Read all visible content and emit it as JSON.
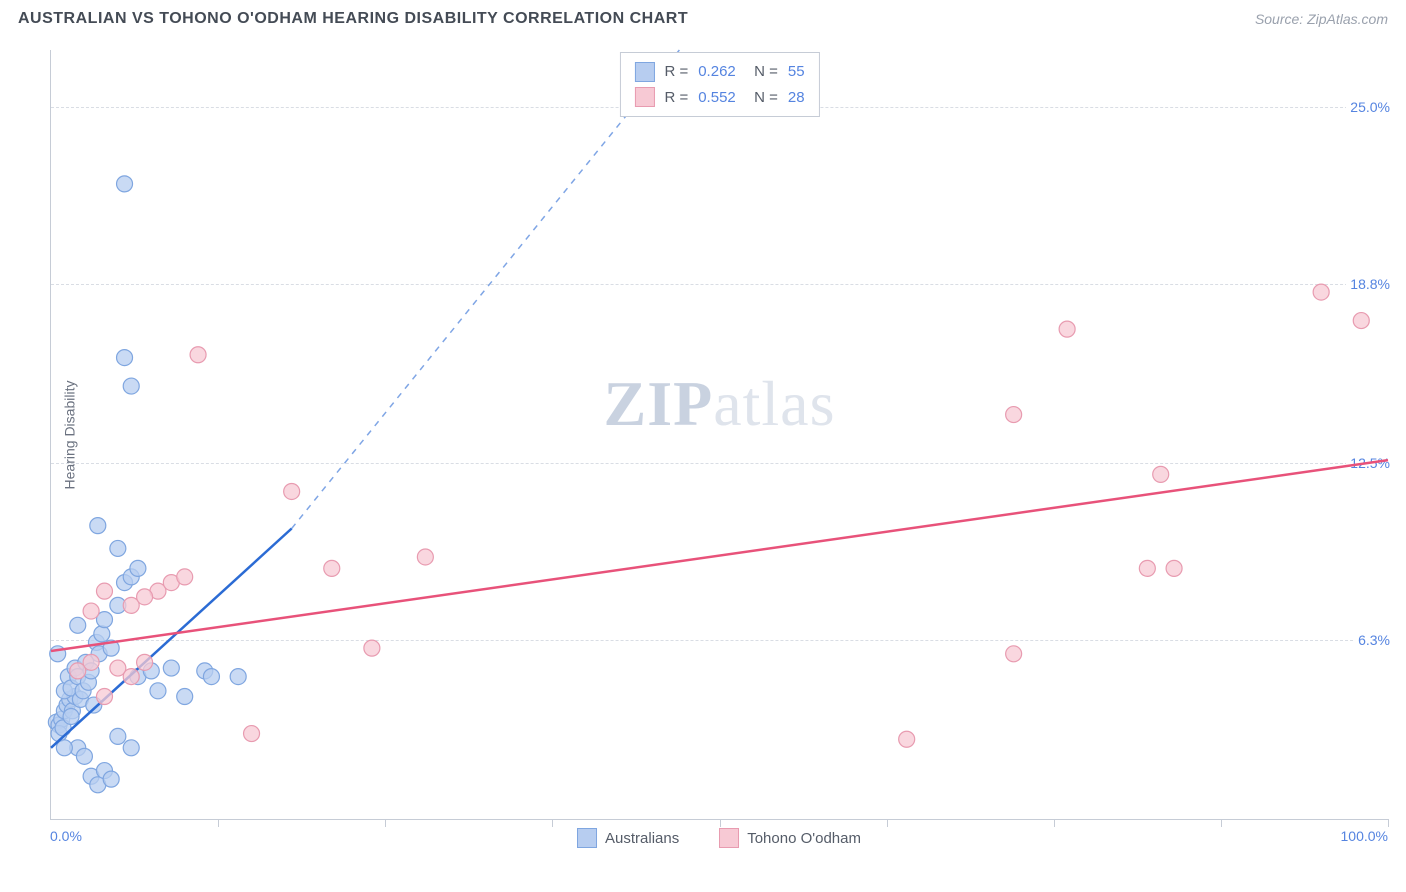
{
  "title": "AUSTRALIAN VS TOHONO O'ODHAM HEARING DISABILITY CORRELATION CHART",
  "source_prefix": "Source: ",
  "source_name": "ZipAtlas.com",
  "ylabel": "Hearing Disability",
  "watermark_bold": "ZIP",
  "watermark_light": "atlas",
  "chart": {
    "type": "scatter",
    "xlim": [
      0,
      100
    ],
    "ylim": [
      0,
      27
    ],
    "x_axis_labels": [
      {
        "pos": 0,
        "text": "0.0%"
      },
      {
        "pos": 100,
        "text": "100.0%"
      }
    ],
    "y_axis_labels": [
      {
        "pos": 6.3,
        "text": "6.3%"
      },
      {
        "pos": 12.5,
        "text": "12.5%"
      },
      {
        "pos": 18.8,
        "text": "18.8%"
      },
      {
        "pos": 25.0,
        "text": "25.0%"
      }
    ],
    "x_ticks": [
      12.5,
      25,
      37.5,
      50,
      62.5,
      75,
      87.5,
      100
    ],
    "grid_color": "#d9dde4",
    "series": [
      {
        "name": "Australians",
        "color_fill": "#b7cdf0",
        "color_stroke": "#7fa6e0",
        "R": "0.262",
        "N": "55",
        "trend": {
          "x1": 0,
          "y1": 2.5,
          "x2": 18,
          "y2": 10.2,
          "dash_x2": 47,
          "dash_y2": 27,
          "color": "#2b6bd4"
        },
        "points": [
          [
            0.4,
            3.4
          ],
          [
            0.6,
            3.3
          ],
          [
            0.8,
            3.5
          ],
          [
            1.0,
            3.8
          ],
          [
            0.6,
            3.0
          ],
          [
            0.9,
            3.2
          ],
          [
            1.2,
            4.0
          ],
          [
            1.4,
            4.2
          ],
          [
            1.6,
            3.8
          ],
          [
            1.8,
            4.3
          ],
          [
            1.0,
            4.5
          ],
          [
            1.3,
            5.0
          ],
          [
            1.5,
            4.6
          ],
          [
            1.8,
            5.3
          ],
          [
            2.0,
            5.0
          ],
          [
            2.2,
            4.2
          ],
          [
            2.4,
            4.5
          ],
          [
            2.6,
            5.5
          ],
          [
            2.8,
            4.8
          ],
          [
            3.0,
            5.2
          ],
          [
            3.2,
            4.0
          ],
          [
            3.4,
            6.2
          ],
          [
            3.6,
            5.8
          ],
          [
            3.8,
            6.5
          ],
          [
            4.0,
            7.0
          ],
          [
            4.5,
            6.0
          ],
          [
            5.0,
            7.5
          ],
          [
            5.5,
            8.3
          ],
          [
            6.0,
            8.5
          ],
          [
            6.5,
            8.8
          ],
          [
            2.0,
            2.5
          ],
          [
            2.5,
            2.2
          ],
          [
            3.0,
            1.5
          ],
          [
            3.5,
            1.2
          ],
          [
            4.0,
            1.7
          ],
          [
            4.5,
            1.4
          ],
          [
            5.0,
            2.9
          ],
          [
            6.0,
            2.5
          ],
          [
            6.5,
            5.0
          ],
          [
            7.5,
            5.2
          ],
          [
            8.0,
            4.5
          ],
          [
            9.0,
            5.3
          ],
          [
            10.0,
            4.3
          ],
          [
            11.5,
            5.2
          ],
          [
            12.0,
            5.0
          ],
          [
            14.0,
            5.0
          ],
          [
            3.5,
            10.3
          ],
          [
            5.5,
            22.3
          ],
          [
            5.5,
            16.2
          ],
          [
            6.0,
            15.2
          ],
          [
            5.0,
            9.5
          ],
          [
            2.0,
            6.8
          ],
          [
            0.5,
            5.8
          ],
          [
            1,
            2.5
          ],
          [
            1.5,
            3.6
          ]
        ]
      },
      {
        "name": "Tohono O'odham",
        "color_fill": "#f7c9d4",
        "color_stroke": "#e89bb0",
        "R": "0.552",
        "N": "28",
        "trend": {
          "x1": 0,
          "y1": 5.9,
          "x2": 100,
          "y2": 12.6,
          "color": "#e8527a"
        },
        "points": [
          [
            2,
            5.2
          ],
          [
            3,
            5.5
          ],
          [
            4,
            4.3
          ],
          [
            5,
            5.3
          ],
          [
            6,
            5.0
          ],
          [
            7,
            5.5
          ],
          [
            8,
            8.0
          ],
          [
            9,
            8.3
          ],
          [
            10,
            8.5
          ],
          [
            11,
            16.3
          ],
          [
            15,
            3.0
          ],
          [
            18,
            11.5
          ],
          [
            21,
            8.8
          ],
          [
            24,
            6.0
          ],
          [
            28,
            9.2
          ],
          [
            64,
            2.8
          ],
          [
            72,
            5.8
          ],
          [
            76,
            17.2
          ],
          [
            82,
            8.8
          ],
          [
            83,
            12.1
          ],
          [
            84,
            8.8
          ],
          [
            72,
            14.2
          ],
          [
            95,
            18.5
          ],
          [
            98,
            17.5
          ],
          [
            4,
            8.0
          ],
          [
            6,
            7.5
          ],
          [
            7,
            7.8
          ],
          [
            3,
            7.3
          ]
        ]
      }
    ]
  }
}
